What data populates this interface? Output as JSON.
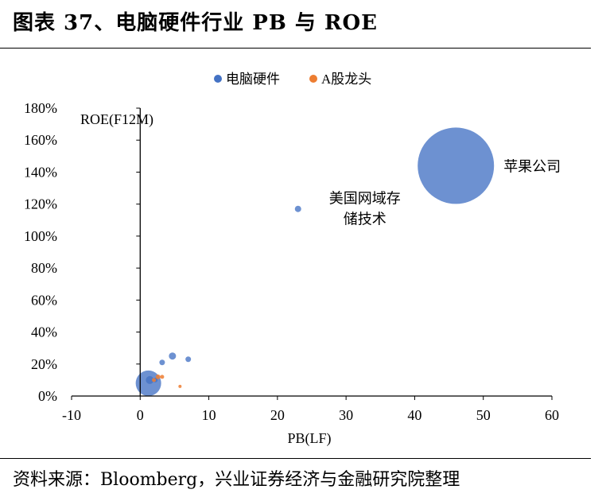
{
  "header": {
    "title": "图表 37、电脑硬件行业 PB 与 ROE"
  },
  "footer": {
    "source": "资料来源：Bloomberg，兴业证券经济与金融研究院整理"
  },
  "chart_data": {
    "type": "scatter",
    "title": "",
    "xlabel": "PB(LF)",
    "ylabel": "ROE(F12M)",
    "xlim": [
      -10,
      60
    ],
    "ylim": [
      0,
      180
    ],
    "x_ticks": [
      -10,
      0,
      10,
      20,
      30,
      40,
      50,
      60
    ],
    "y_ticks": [
      0,
      20,
      40,
      60,
      80,
      100,
      120,
      140,
      160,
      180
    ],
    "y_tick_format": "percent",
    "legend_position": "top",
    "series": [
      {
        "name": "电脑硬件",
        "color": "#4472C4",
        "points": [
          {
            "x": 46.0,
            "y": 144,
            "size": 48
          },
          {
            "x": 23.0,
            "y": 117,
            "size": 4
          },
          {
            "x": 1.2,
            "y": 8,
            "size": 16
          },
          {
            "x": 1.4,
            "y": 10,
            "size": 5
          },
          {
            "x": 4.7,
            "y": 25,
            "size": 4.5
          },
          {
            "x": 7.0,
            "y": 23,
            "size": 3.5
          },
          {
            "x": 3.2,
            "y": 21,
            "size": 3.5
          },
          {
            "x": 2.2,
            "y": 10,
            "size": 3
          }
        ]
      },
      {
        "name": "A股龙头",
        "color": "#ED7D31",
        "points": [
          {
            "x": 2.6,
            "y": 12,
            "size": 3
          },
          {
            "x": 3.2,
            "y": 12,
            "size": 2.5
          },
          {
            "x": 2.0,
            "y": 10,
            "size": 2.5
          },
          {
            "x": 5.8,
            "y": 6,
            "size": 2
          }
        ]
      }
    ],
    "annotations": [
      {
        "lines": [
          "苹果公司"
        ],
        "x": 46,
        "y": 144
      },
      {
        "lines": [
          "美国网域存",
          "储技术"
        ],
        "x": 23,
        "y": 117
      }
    ]
  }
}
